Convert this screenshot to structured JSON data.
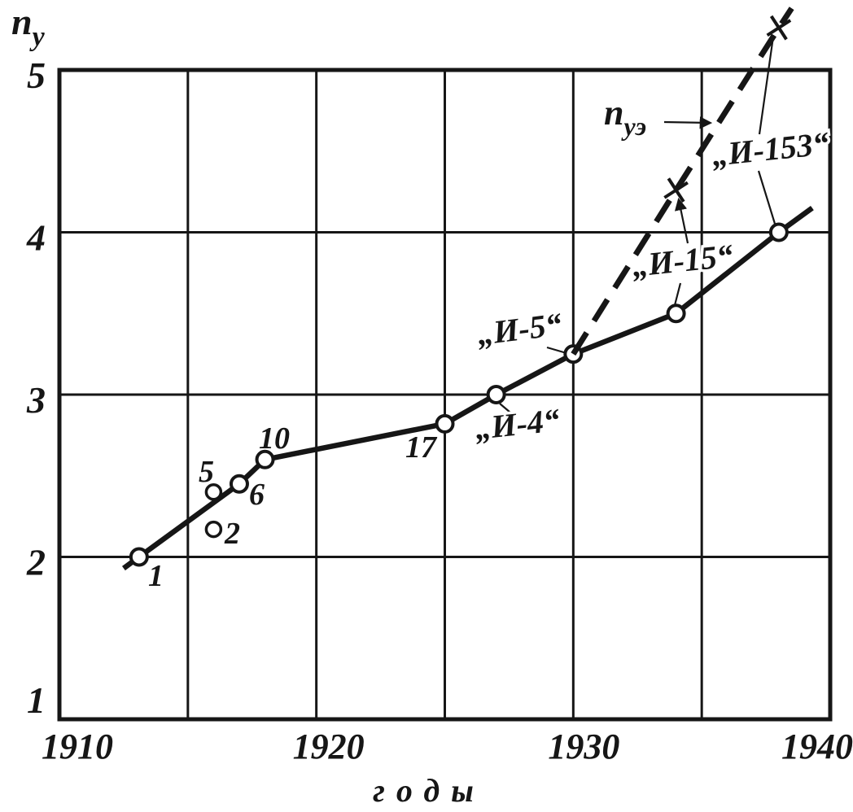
{
  "figure": {
    "background_color": "#ffffff",
    "ink_color": "#161616"
  },
  "chart_data": {
    "type": "line",
    "title": "",
    "xlabel": "годы",
    "ylabel": {
      "main": "n",
      "sub": "у"
    },
    "xlim": [
      1910,
      1940
    ],
    "ylim": [
      1,
      5
    ],
    "grid": true,
    "x_gridline_step": 5,
    "x_ticks": [
      {
        "value": 1910,
        "label": "1910"
      },
      {
        "value": 1920,
        "label": "1920"
      },
      {
        "value": 1930,
        "label": "1930"
      },
      {
        "value": 1940,
        "label": "1940"
      }
    ],
    "y_ticks": [
      {
        "value": 5,
        "label": "5"
      },
      {
        "value": 4,
        "label": "4"
      },
      {
        "value": 3,
        "label": "3"
      },
      {
        "value": 2,
        "label": "2"
      },
      {
        "value": 1,
        "label": "1"
      }
    ],
    "series": [
      {
        "name": "ny-serial-fighters",
        "line": "solid",
        "marker": "circle",
        "label": null,
        "points": [
          {
            "year": 1913.1,
            "n": 2.0,
            "label": "1"
          },
          {
            "year": 1917,
            "n": 2.45,
            "label": "6"
          },
          {
            "year": 1918,
            "n": 2.6,
            "label": "10"
          },
          {
            "year": 1925,
            "n": 2.82,
            "label": "17"
          },
          {
            "year": 1927,
            "n": 3.0,
            "label": "„И-4“"
          },
          {
            "year": 1930,
            "n": 3.25,
            "label": "„И-5“"
          },
          {
            "year": 1934,
            "n": 3.5,
            "label": "„И-15“"
          },
          {
            "year": 1938,
            "n": 4.0,
            "label": "„И-153“"
          }
        ],
        "line_extension_start": {
          "year": 1912.5,
          "n": 1.93
        },
        "line_extension_end": {
          "year": 1939.3,
          "n": 4.15
        }
      },
      {
        "name": "ny-experimental",
        "line": "dashed",
        "marker": "x",
        "label": {
          "main": "n",
          "sub": "уэ"
        },
        "points": [
          {
            "year": 1934,
            "n": 4.26,
            "label": null
          },
          {
            "year": 1938,
            "n": 5.26,
            "label": null
          }
        ],
        "line_extension_start": {
          "year": 1930,
          "n": 3.25
        },
        "line_extension_end": {
          "year": 1938.5,
          "n": 5.38
        }
      }
    ],
    "extra_points": [
      {
        "year": 1916,
        "n": 2.4,
        "label": "5"
      },
      {
        "year": 1916,
        "n": 2.17,
        "label": "2"
      }
    ]
  }
}
